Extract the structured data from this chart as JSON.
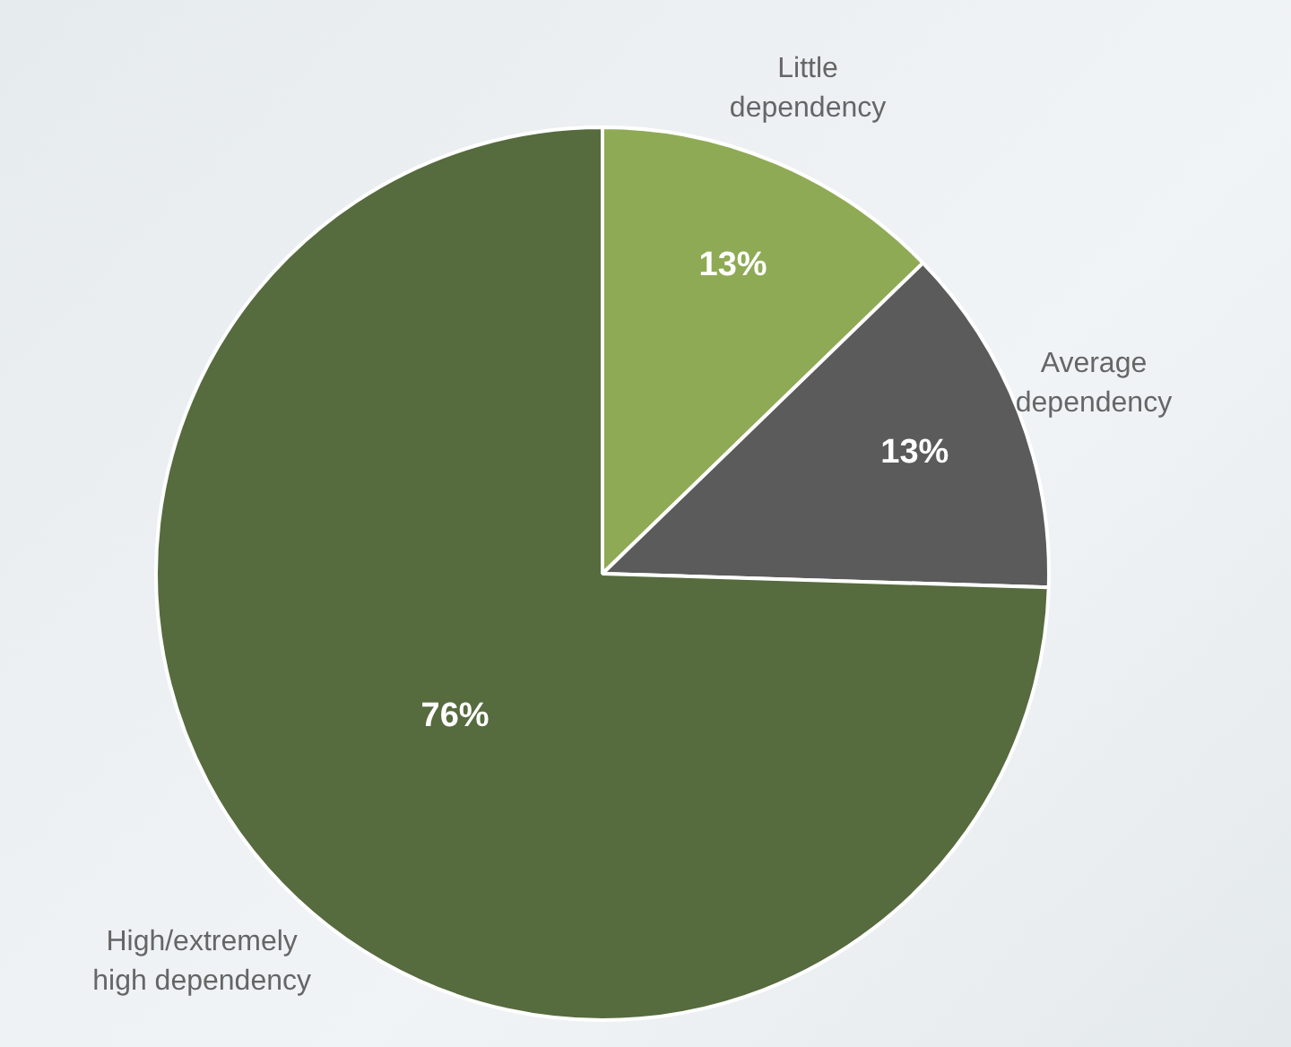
{
  "chart_data": {
    "type": "pie",
    "categories": [
      "Little dependency",
      "Average dependency",
      "High/extremely high dependency"
    ],
    "values": [
      13,
      13,
      76
    ],
    "value_labels": [
      "13%",
      "13%",
      "76%"
    ],
    "colors": [
      "#8faa55",
      "#5b5b5b",
      "#566b3e"
    ],
    "legend": false
  }
}
